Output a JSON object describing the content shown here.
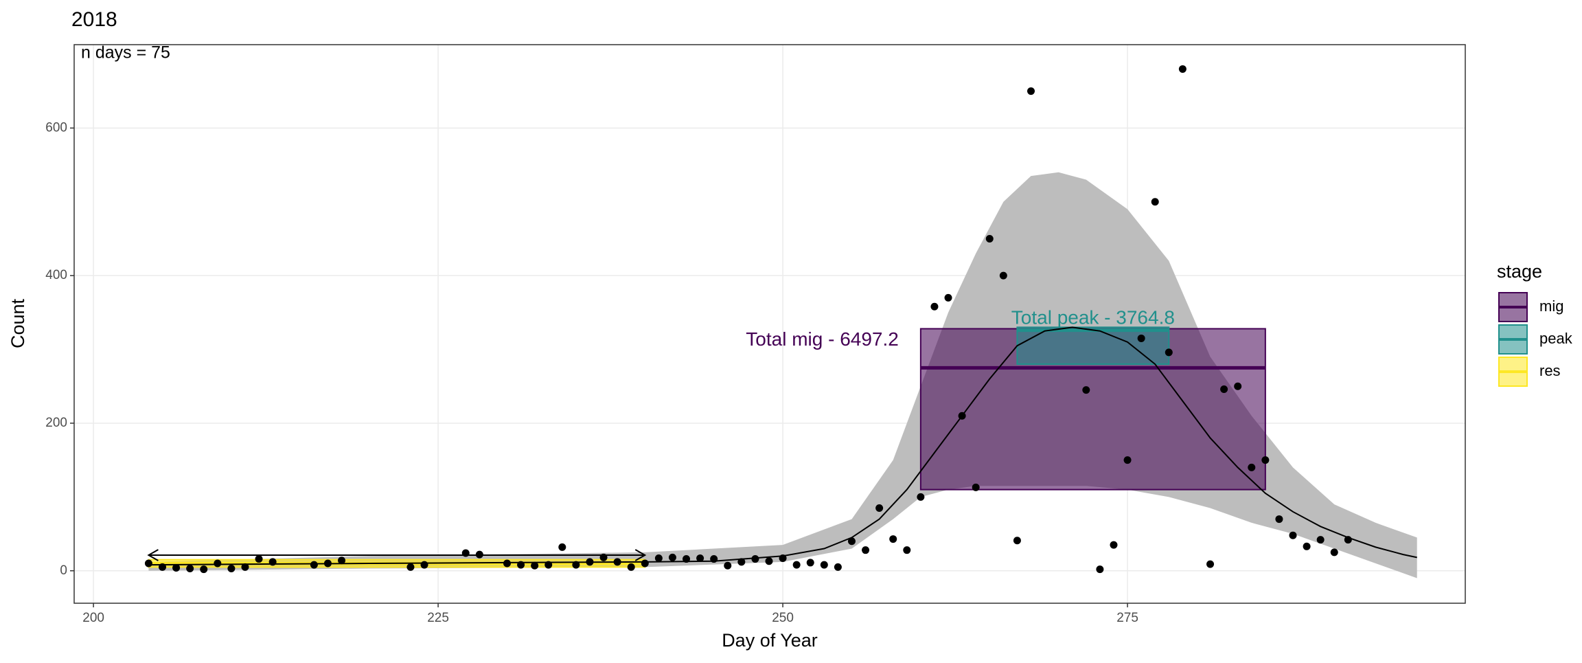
{
  "chart_data": {
    "type": "scatter",
    "title": "2018",
    "annotation": "n days = 75",
    "x_label": "Day of Year",
    "y_label": "Count",
    "xlim": [
      198.6,
      299.5
    ],
    "ylim": [
      -44,
      713
    ],
    "xticks": [
      200,
      225,
      250,
      275
    ],
    "yticks": [
      0,
      200,
      400,
      600
    ],
    "grid": true,
    "points": {
      "color": "#000000",
      "x": [
        204,
        205,
        206,
        207,
        208,
        209,
        210,
        211,
        212,
        213,
        216,
        217,
        218,
        223,
        224,
        227,
        228,
        230,
        231,
        232,
        233,
        234,
        235,
        236,
        237,
        238,
        239,
        240,
        241,
        242,
        243,
        244,
        245,
        246,
        247,
        248,
        249,
        250,
        251,
        252,
        253,
        254,
        255,
        256,
        257,
        258,
        259,
        260,
        261,
        262,
        263,
        264,
        265,
        266,
        267,
        268,
        272,
        273,
        274,
        275,
        276,
        277,
        278,
        279,
        281,
        282,
        283,
        284,
        285,
        286,
        287,
        288,
        289,
        290,
        291
      ],
      "values": [
        10,
        5,
        4,
        3,
        2,
        10,
        3,
        5,
        16,
        12,
        8,
        10,
        14,
        5,
        8,
        24,
        22,
        10,
        8,
        7,
        8,
        32,
        8,
        12,
        18,
        12,
        5,
        10,
        17,
        18,
        16,
        17,
        16,
        7,
        12,
        16,
        13,
        17,
        8,
        11,
        8,
        5,
        40,
        28,
        85,
        43,
        28,
        100,
        358,
        370,
        210,
        113,
        450,
        400,
        41,
        650,
        245,
        2,
        35,
        150,
        315,
        500,
        296,
        680,
        9,
        246,
        250,
        140,
        150,
        70,
        48,
        33,
        42,
        25,
        42
      ]
    },
    "fit": {
      "color": "#000000",
      "x": [
        204,
        220,
        240,
        245,
        250,
        253,
        255,
        257,
        259,
        261,
        263,
        265,
        267,
        269,
        271,
        273,
        275,
        277,
        279,
        281,
        283,
        285,
        287,
        289,
        291,
        293,
        295,
        296
      ],
      "values": [
        8,
        10,
        12,
        13,
        20,
        30,
        45,
        70,
        110,
        160,
        210,
        260,
        305,
        325,
        330,
        325,
        310,
        280,
        230,
        180,
        140,
        105,
        80,
        60,
        45,
        32,
        22,
        18
      ]
    },
    "ribbon": {
      "color": "#bdbdbd",
      "x": [
        204,
        220,
        240,
        250,
        255,
        258,
        260,
        262,
        264,
        266,
        268,
        270,
        272,
        275,
        278,
        281,
        284,
        287,
        290,
        293,
        296
      ],
      "lower": [
        0,
        3,
        5,
        12,
        30,
        70,
        100,
        110,
        115,
        115,
        115,
        115,
        115,
        110,
        100,
        85,
        65,
        50,
        30,
        10,
        -10
      ],
      "upper": [
        12,
        20,
        25,
        35,
        70,
        150,
        250,
        350,
        430,
        500,
        535,
        540,
        530,
        490,
        420,
        290,
        210,
        140,
        90,
        65,
        45
      ]
    },
    "legend_title": "stage",
    "series": [
      {
        "name": "mig",
        "color": "#440154",
        "label": "Total mig - 6497.2",
        "xmin": 260,
        "xmax": 285,
        "ymin": 110,
        "ymax": 328,
        "median": 275
      },
      {
        "name": "peak",
        "color": "#21908C",
        "label": "Total peak - 3764.8",
        "xmin": 267,
        "xmax": 278,
        "ymin": 280,
        "ymax": 330,
        "median": 326
      },
      {
        "name": "res",
        "color": "#FDE725",
        "xmin": 204,
        "xmax": 240,
        "ymin": 5,
        "ymax": 15,
        "median": 10
      }
    ]
  }
}
